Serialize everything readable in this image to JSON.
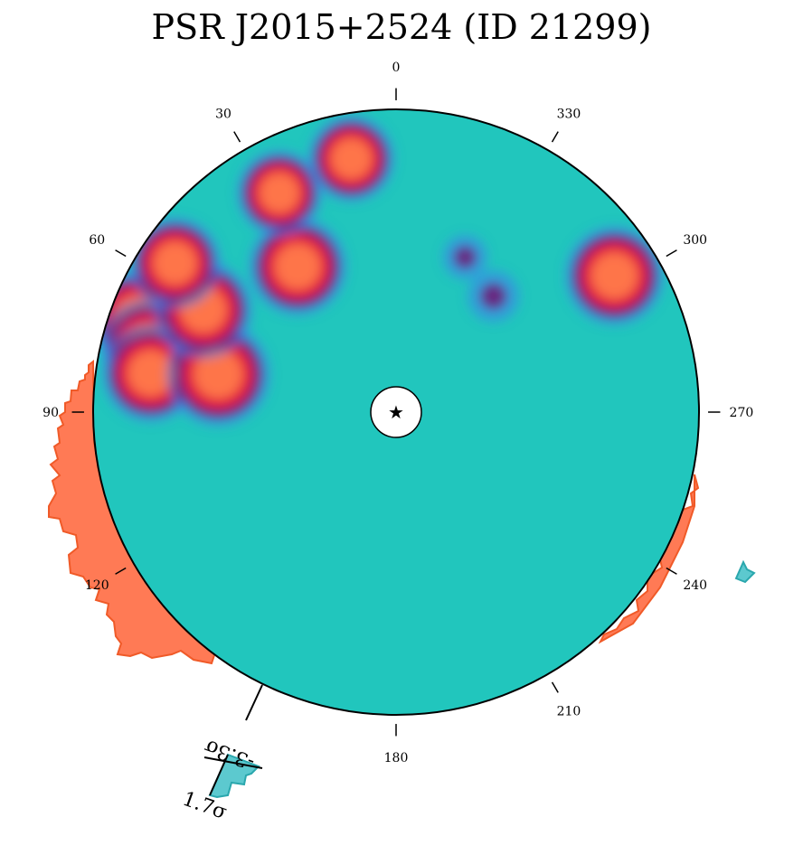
{
  "title": "PSR J2015+2524 (ID 21299)",
  "chart_data": {
    "type": "heatmap",
    "projection": "polar",
    "title": "PSR J2015+2524 (ID 21299)",
    "center_marker": "star-icon",
    "angle_ticks": [
      "0",
      "30",
      "60",
      "90",
      "120",
      "180",
      "210",
      "240",
      "270",
      "300",
      "330"
    ],
    "angle_direction": "counter-clockwise",
    "colormap": [
      "#21c6bd",
      "#3b82f0",
      "#6b1f7a",
      "#e8193c",
      "#ff7a4a"
    ],
    "blobs": [
      {
        "angle": 70,
        "r": 0.91,
        "level": 0.85
      },
      {
        "angle": 75,
        "r": 0.85,
        "level": 0.82
      },
      {
        "angle": 81,
        "r": 0.82,
        "level": 0.9
      },
      {
        "angle": 78,
        "r": 0.6,
        "level": 1.0
      },
      {
        "angle": 62,
        "r": 0.72,
        "level": 0.9
      },
      {
        "angle": 56,
        "r": 0.88,
        "level": 0.8
      },
      {
        "angle": 34,
        "r": 0.58,
        "level": 0.9
      },
      {
        "angle": 28,
        "r": 0.82,
        "level": 0.7
      },
      {
        "angle": 10,
        "r": 0.85,
        "level": 0.72
      },
      {
        "angle": 302,
        "r": 0.85,
        "level": 0.92
      },
      {
        "angle": 320,
        "r": 0.5,
        "level": 0.45
      },
      {
        "angle": 336,
        "r": 0.56,
        "level": 0.3
      }
    ],
    "histogram_outside": [
      {
        "from_angle": 80,
        "to_angle": 130,
        "sign": "positive",
        "color": "#ff7a55"
      },
      {
        "from_angle": 240,
        "to_angle": 255,
        "sign": "positive",
        "color": "#ff7a55"
      }
    ],
    "significance_marker": {
      "angle": 155,
      "low": "-3.3σ",
      "high": "1.7σ"
    }
  }
}
